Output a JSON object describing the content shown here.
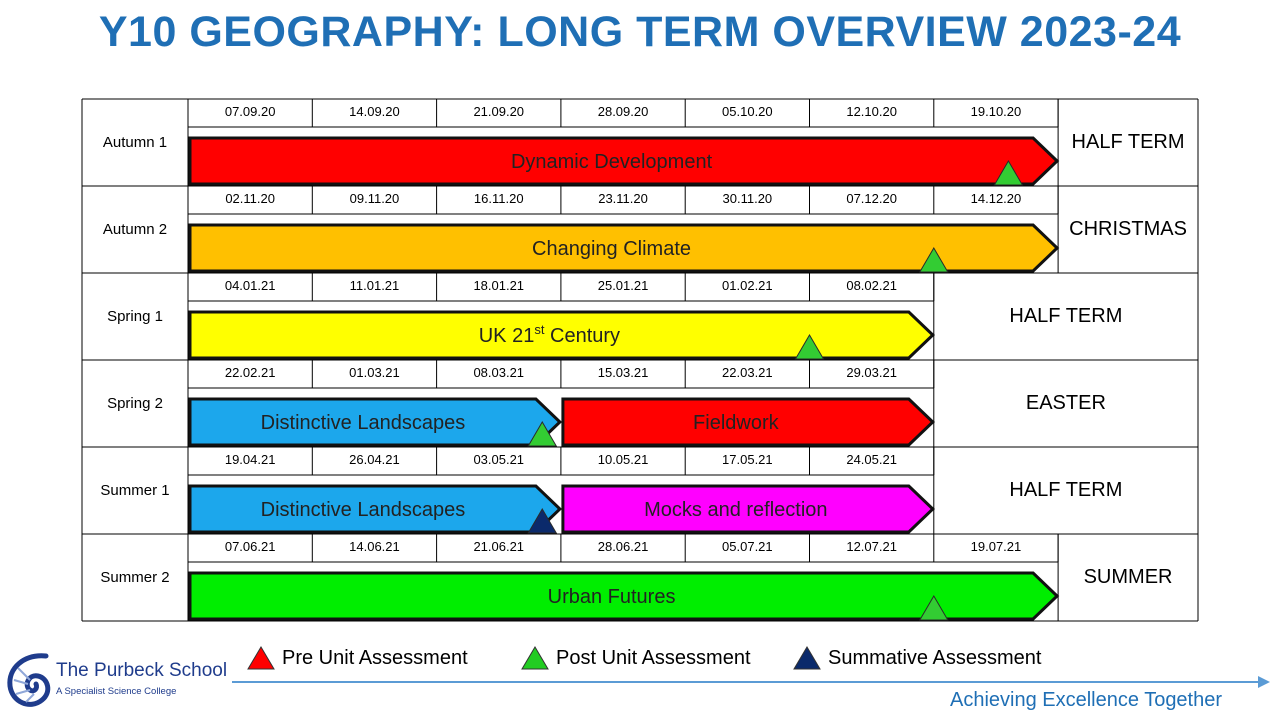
{
  "title": "Y10 GEOGRAPHY: LONG TERM OVERVIEW 2023-24",
  "terms": [
    {
      "name": "Autumn 1",
      "dates": [
        "07.09.20",
        "14.09.20",
        "21.09.20",
        "28.09.20",
        "05.10.20",
        "12.10.20",
        "19.10.20"
      ],
      "holiday": "HALF TERM",
      "units": [
        {
          "label": "Dynamic Development",
          "color": "#ff0000",
          "start": 0,
          "weeks": 7
        }
      ],
      "markers": [
        {
          "type": "post",
          "week": 6.6
        }
      ]
    },
    {
      "name": "Autumn 2",
      "dates": [
        "02.11.20",
        "09.11.20",
        "16.11.20",
        "23.11.20",
        "30.11.20",
        "07.12.20",
        "14.12.20"
      ],
      "holiday": "CHRISTMAS",
      "units": [
        {
          "label": "Changing Climate",
          "color": "#ffc000",
          "start": 0,
          "weeks": 7
        }
      ],
      "markers": [
        {
          "type": "post",
          "week": 6.0
        }
      ]
    },
    {
      "name": "Spring 1",
      "dates": [
        "04.01.21",
        "11.01.21",
        "18.01.21",
        "25.01.21",
        "01.02.21",
        "08.02.21"
      ],
      "holiday": "HALF TERM",
      "units": [
        {
          "label": "UK 21",
          "sup": "st",
          "label_after": " Century",
          "color": "#ffff00",
          "start": 0,
          "weeks": 6
        }
      ],
      "markers": [
        {
          "type": "post",
          "week": 5.0
        }
      ]
    },
    {
      "name": "Spring 2",
      "dates": [
        "22.02.21",
        "01.03.21",
        "08.03.21",
        "15.03.21",
        "22.03.21",
        "29.03.21"
      ],
      "holiday": "EASTER",
      "units": [
        {
          "label": "Distinctive Landscapes",
          "color": "#1ca7ec",
          "start": 0,
          "weeks": 3
        },
        {
          "label": "Fieldwork",
          "color": "#ff0000",
          "start": 3,
          "weeks": 3
        }
      ],
      "markers": [
        {
          "type": "post",
          "week": 2.85
        }
      ]
    },
    {
      "name": "Summer 1",
      "dates": [
        "19.04.21",
        "26.04.21",
        "03.05.21",
        "10.05.21",
        "17.05.21",
        "24.05.21"
      ],
      "holiday": "HALF TERM",
      "units": [
        {
          "label": "Distinctive Landscapes",
          "color": "#1ca7ec",
          "start": 0,
          "weeks": 3
        },
        {
          "label": "Mocks and reflection",
          "color": "#ff00ff",
          "start": 3,
          "weeks": 3
        }
      ],
      "markers": [
        {
          "type": "summative",
          "week": 2.85
        }
      ]
    },
    {
      "name": "Summer 2",
      "dates": [
        "07.06.21",
        "14.06.21",
        "21.06.21",
        "28.06.21",
        "05.07.21",
        "12.07.21",
        "19.07.21"
      ],
      "holiday": "SUMMER",
      "units": [
        {
          "label": "Urban Futures",
          "color": "#00ee00",
          "start": 0,
          "weeks": 7
        }
      ],
      "markers": [
        {
          "type": "post",
          "week": 6.0
        }
      ]
    }
  ],
  "legend": [
    {
      "label": "Pre Unit Assessment",
      "color": "#ff0000",
      "icon": "red-triangle-icon"
    },
    {
      "label": "Post Unit Assessment",
      "color": "#22cc22",
      "icon": "green-triangle-icon"
    },
    {
      "label": "Summative Assessment",
      "color": "#0b2a6b",
      "icon": "navy-triangle-icon"
    }
  ],
  "marker_colors": {
    "pre": "#ff0000",
    "post": "#33cc33",
    "summative": "#0b2a6b"
  },
  "school": {
    "name": "The Purbeck School",
    "subtitle": "A Specialist Science College"
  },
  "tagline": "Achieving Excellence Together"
}
